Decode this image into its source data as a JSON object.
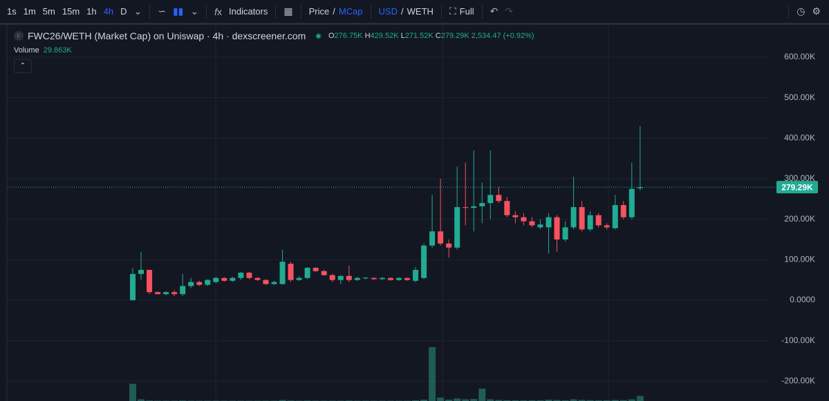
{
  "toolbar": {
    "intervals": [
      "1s",
      "1m",
      "5m",
      "15m",
      "1h",
      "4h",
      "D"
    ],
    "indicators": "Indicators",
    "price": "Price",
    "mcap": "MCap",
    "usd": "USD",
    "weth": "WETH",
    "full": "Full"
  },
  "legend": {
    "title": "FWC26/WETH (Market Cap) on Uniswap · 4h · dexscreener.com",
    "o_key": "O",
    "open": "276.75K",
    "h_key": "H",
    "high": "429.52K",
    "l_key": "L",
    "low": "271.52K",
    "c_key": "C",
    "close": "279.29K",
    "change": "2,534.47 (+0.92%)"
  },
  "volume_legend": {
    "title": "Volume",
    "value": "29.863K"
  },
  "chart_data": {
    "type": "candlestick",
    "open": [
      0,
      65000,
      75000,
      20000,
      15000,
      20000,
      15000,
      35000,
      45000,
      38000,
      45000,
      55000,
      48000,
      55000,
      68000,
      55000,
      50000,
      40000,
      40000,
      90000,
      50000,
      55000,
      80000,
      72000,
      62000,
      50000,
      60000,
      50000,
      54000,
      55000,
      52000,
      55000,
      50000,
      55000,
      48000,
      55000,
      135000,
      170000,
      140000,
      130000,
      230000,
      228000,
      232000,
      240000,
      260000,
      245000,
      210000,
      205000,
      195000,
      180000,
      180000,
      205000,
      150000,
      180000,
      230000,
      175000,
      210000,
      185000,
      178000,
      235000,
      205000,
      276750
    ],
    "high": [
      80000,
      120000,
      75000,
      22000,
      22000,
      25000,
      65000,
      55000,
      48000,
      52000,
      58000,
      57000,
      58000,
      70000,
      70000,
      57000,
      52000,
      48000,
      125000,
      95000,
      60000,
      82000,
      82000,
      75000,
      65000,
      62000,
      85000,
      58000,
      57000,
      57000,
      58000,
      57000,
      57000,
      56000,
      82000,
      140000,
      260000,
      300000,
      150000,
      330000,
      340000,
      370000,
      290000,
      370000,
      280000,
      255000,
      220000,
      215000,
      205000,
      200000,
      215000,
      210000,
      195000,
      305000,
      245000,
      220000,
      215000,
      190000,
      260000,
      245000,
      340000,
      429520
    ],
    "low": [
      0,
      50000,
      15000,
      15000,
      12000,
      10000,
      10000,
      30000,
      35000,
      35000,
      42000,
      46000,
      45000,
      50000,
      52000,
      48000,
      38000,
      38000,
      38000,
      45000,
      48000,
      52000,
      70000,
      60000,
      45000,
      40000,
      45000,
      48000,
      52000,
      50000,
      50000,
      48000,
      48000,
      48000,
      45000,
      52000,
      130000,
      135000,
      105000,
      125000,
      185000,
      170000,
      190000,
      200000,
      240000,
      205000,
      190000,
      185000,
      180000,
      175000,
      115000,
      120000,
      145000,
      175000,
      170000,
      170000,
      180000,
      175000,
      175000,
      200000,
      200000,
      271520
    ],
    "close": [
      65000,
      75000,
      20000,
      15000,
      20000,
      15000,
      35000,
      45000,
      38000,
      50000,
      55000,
      48000,
      55000,
      68000,
      55000,
      50000,
      40000,
      45000,
      95000,
      50000,
      55000,
      80000,
      72000,
      62000,
      50000,
      60000,
      50000,
      55000,
      56000,
      52000,
      55000,
      50000,
      55000,
      50000,
      75000,
      135000,
      170000,
      140000,
      130000,
      230000,
      228000,
      232000,
      240000,
      260000,
      245000,
      210000,
      205000,
      195000,
      185000,
      187000,
      205000,
      150000,
      180000,
      230000,
      175000,
      210000,
      185000,
      180000,
      235000,
      205000,
      275000,
      279290
    ],
    "volume": [
      100000,
      10000,
      3000,
      2000,
      2000,
      2000,
      3000,
      2000,
      2000,
      2000,
      2000,
      2000,
      2000,
      2000,
      2000,
      2000,
      2000,
      2000,
      6000,
      3000,
      2000,
      3000,
      2000,
      2000,
      2000,
      2000,
      3000,
      2000,
      2000,
      2000,
      2000,
      2000,
      2000,
      2000,
      4000,
      8000,
      312000,
      20000,
      8000,
      15000,
      10000,
      12000,
      72000,
      10000,
      6000,
      5000,
      4000,
      4000,
      4000,
      4000,
      8000,
      6000,
      4000,
      10000,
      6000,
      5000,
      4000,
      4000,
      6000,
      5000,
      10000,
      29863
    ],
    "volume_ylim": [
      0,
      400000
    ],
    "up_color": "#22ab94",
    "down_color": "#f7525f",
    "volume_color": "#1e5c55",
    "ylim": [
      -248850,
      681800
    ],
    "yticks": [
      {
        "value": 600000,
        "label": "600.00K"
      },
      {
        "value": 500000,
        "label": "500.00K"
      },
      {
        "value": 400000,
        "label": "400.00K"
      },
      {
        "value": 300000,
        "label": "300.00K"
      },
      {
        "value": 200000,
        "label": "200.00K"
      },
      {
        "value": 100000,
        "label": "100.00K"
      },
      {
        "value": 0,
        "label": "0.0000"
      },
      {
        "value": -100000,
        "label": "-100.00K"
      },
      {
        "value": -200000,
        "label": "-200.00K"
      }
    ],
    "grid": true,
    "price_line": {
      "value": 279290,
      "label": "279.29K"
    }
  }
}
